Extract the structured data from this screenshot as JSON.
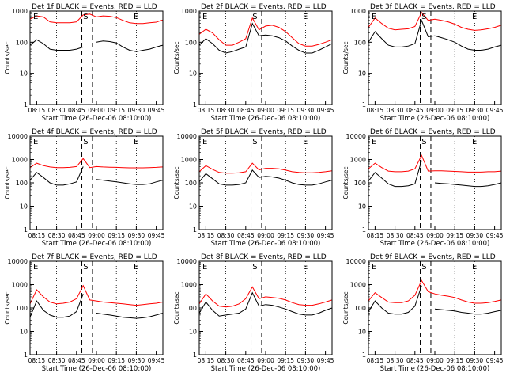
{
  "figure": {
    "ylabel": "Counts/sec",
    "xlabel": "Start Time (26-Dec-06 08:10:00)",
    "y_ticks": [
      "1",
      "10",
      "100",
      "1000",
      "10000"
    ],
    "x_ticks": [
      "08:15",
      "08:30",
      "08:45",
      "09:00",
      "09:15",
      "09:30",
      "09:45"
    ],
    "colors": {
      "events": "#000000",
      "lld": "#ff0000",
      "axes": "#000000"
    }
  },
  "chart_data": [
    {
      "type": "line",
      "title": "Det 1f BLACK = Events, RED = LLD",
      "markers": {
        "pre": "E",
        "saa": "S",
        "post": "E"
      },
      "ylim": [
        1,
        1000
      ],
      "y_scale": "log",
      "x": [
        "08:10",
        "08:15",
        "08:20",
        "08:25",
        "08:30",
        "08:35",
        "08:40",
        "08:45",
        "08:50",
        "08:55",
        "09:00",
        "09:05",
        "09:10",
        "09:15",
        "09:20",
        "09:25",
        "09:30",
        "09:35",
        "09:40",
        "09:45",
        "09:50"
      ],
      "series": [
        {
          "name": "RED = LLD",
          "values": [
            550,
            700,
            650,
            450,
            420,
            420,
            420,
            450,
            750,
            800,
            650,
            700,
            680,
            620,
            500,
            420,
            400,
            400,
            420,
            440,
            520
          ]
        },
        {
          "name": "BLACK = Events",
          "values": [
            80,
            120,
            90,
            60,
            55,
            55,
            55,
            60,
            70,
            null,
            100,
            110,
            105,
            95,
            70,
            55,
            50,
            55,
            60,
            70,
            80
          ]
        }
      ]
    },
    {
      "type": "line",
      "title": "Det 2f BLACK = Events, RED = LLD",
      "markers": {
        "pre": "E",
        "saa": "S",
        "post": "E"
      },
      "ylim": [
        1,
        1000
      ],
      "y_scale": "log",
      "x": [
        "08:10",
        "08:15",
        "08:20",
        "08:25",
        "08:30",
        "08:35",
        "08:40",
        "08:45",
        "08:50",
        "08:55",
        "09:00",
        "09:05",
        "09:10",
        "09:15",
        "09:20",
        "09:25",
        "09:30",
        "09:35",
        "09:40",
        "09:45",
        "09:50"
      ],
      "series": [
        {
          "name": "RED = LLD",
          "values": [
            180,
            260,
            200,
            120,
            80,
            80,
            100,
            130,
            600,
            250,
            330,
            350,
            300,
            220,
            140,
            90,
            75,
            75,
            85,
            100,
            120
          ]
        },
        {
          "name": "BLACK = Events",
          "values": [
            80,
            130,
            90,
            55,
            45,
            50,
            60,
            70,
            400,
            160,
            170,
            160,
            140,
            110,
            75,
            55,
            45,
            45,
            55,
            70,
            90
          ]
        }
      ]
    },
    {
      "type": "line",
      "title": "Det 3f BLACK = Events, RED = LLD",
      "markers": {
        "pre": "E",
        "saa": "S",
        "post": "E"
      },
      "ylim": [
        1,
        1000
      ],
      "y_scale": "log",
      "x": [
        "08:10",
        "08:15",
        "08:20",
        "08:25",
        "08:30",
        "08:35",
        "08:40",
        "08:45",
        "08:50",
        "08:55",
        "09:00",
        "09:05",
        "09:10",
        "09:15",
        "09:20",
        "09:25",
        "09:30",
        "09:35",
        "09:40",
        "09:45",
        "09:50"
      ],
      "series": [
        {
          "name": "RED = LLD",
          "values": [
            300,
            600,
            400,
            280,
            250,
            260,
            270,
            320,
            900,
            500,
            550,
            500,
            450,
            380,
            300,
            260,
            240,
            250,
            270,
            300,
            350
          ]
        },
        {
          "name": "BLACK = Events",
          "values": [
            100,
            220,
            130,
            80,
            70,
            70,
            75,
            90,
            500,
            150,
            160,
            140,
            120,
            100,
            75,
            60,
            55,
            55,
            60,
            70,
            80
          ]
        }
      ]
    },
    {
      "type": "line",
      "title": "Det 4f BLACK = Events, RED = LLD",
      "markers": {
        "pre": "E",
        "saa": "S",
        "post": "E"
      },
      "ylim": [
        1,
        10000
      ],
      "y_scale": "log",
      "x": [
        "08:10",
        "08:15",
        "08:20",
        "08:25",
        "08:30",
        "08:35",
        "08:40",
        "08:45",
        "08:50",
        "08:55",
        "09:00",
        "09:05",
        "09:10",
        "09:15",
        "09:20",
        "09:25",
        "09:30",
        "09:35",
        "09:40",
        "09:45",
        "09:50"
      ],
      "series": [
        {
          "name": "RED = LLD",
          "values": [
            450,
            700,
            550,
            480,
            450,
            450,
            460,
            500,
            1100,
            450,
            500,
            480,
            470,
            460,
            450,
            440,
            440,
            440,
            450,
            460,
            480
          ]
        },
        {
          "name": "BLACK = Events",
          "values": [
            130,
            280,
            170,
            100,
            80,
            80,
            90,
            110,
            500,
            null,
            140,
            130,
            120,
            110,
            100,
            90,
            85,
            85,
            90,
            110,
            130
          ]
        }
      ]
    },
    {
      "type": "line",
      "title": "Det 5f BLACK = Events, RED = LLD",
      "markers": {
        "pre": "E",
        "saa": "S",
        "post": "E"
      },
      "ylim": [
        1,
        10000
      ],
      "y_scale": "log",
      "x": [
        "08:10",
        "08:15",
        "08:20",
        "08:25",
        "08:30",
        "08:35",
        "08:40",
        "08:45",
        "08:50",
        "08:55",
        "09:00",
        "09:05",
        "09:10",
        "09:15",
        "09:20",
        "09:25",
        "09:30",
        "09:35",
        "09:40",
        "09:45",
        "09:50"
      ],
      "series": [
        {
          "name": "RED = LLD",
          "values": [
            300,
            550,
            380,
            280,
            260,
            260,
            270,
            300,
            700,
            360,
            420,
            420,
            400,
            350,
            300,
            280,
            270,
            270,
            280,
            300,
            330
          ]
        },
        {
          "name": "BLACK = Events",
          "values": [
            110,
            250,
            150,
            90,
            80,
            80,
            85,
            100,
            350,
            170,
            190,
            180,
            160,
            130,
            100,
            85,
            80,
            80,
            90,
            110,
            130
          ]
        }
      ]
    },
    {
      "type": "line",
      "title": "Det 6f BLACK = Events, RED = LLD",
      "markers": {
        "pre": "E",
        "saa": "S",
        "post": "E"
      },
      "ylim": [
        1,
        10000
      ],
      "y_scale": "log",
      "x": [
        "08:10",
        "08:15",
        "08:20",
        "08:25",
        "08:30",
        "08:35",
        "08:40",
        "08:45",
        "08:50",
        "08:55",
        "09:00",
        "09:05",
        "09:10",
        "09:15",
        "09:20",
        "09:25",
        "09:30",
        "09:35",
        "09:40",
        "09:45",
        "09:50"
      ],
      "series": [
        {
          "name": "RED = LLD",
          "values": [
            400,
            700,
            450,
            320,
            300,
            300,
            320,
            400,
            1500,
            320,
            330,
            330,
            320,
            310,
            300,
            290,
            290,
            290,
            300,
            300,
            320
          ]
        },
        {
          "name": "BLACK = Events",
          "values": [
            120,
            280,
            160,
            90,
            70,
            70,
            75,
            90,
            900,
            null,
            100,
            95,
            90,
            85,
            80,
            75,
            70,
            70,
            75,
            85,
            100
          ]
        }
      ]
    },
    {
      "type": "line",
      "title": "Det 7f BLACK = Events, RED = LLD",
      "markers": {
        "pre": "E",
        "saa": "S",
        "post": "E"
      },
      "ylim": [
        1,
        10000
      ],
      "y_scale": "log",
      "x": [
        "08:10",
        "08:15",
        "08:20",
        "08:25",
        "08:30",
        "08:35",
        "08:40",
        "08:45",
        "08:50",
        "08:55",
        "09:00",
        "09:05",
        "09:10",
        "09:15",
        "09:20",
        "09:25",
        "09:30",
        "09:35",
        "09:40",
        "09:45",
        "09:50"
      ],
      "series": [
        {
          "name": "RED = LLD",
          "values": [
            150,
            600,
            300,
            180,
            150,
            160,
            180,
            250,
            900,
            220,
            200,
            180,
            170,
            160,
            150,
            140,
            130,
            140,
            150,
            160,
            180
          ]
        },
        {
          "name": "BLACK = Events",
          "values": [
            40,
            200,
            80,
            50,
            40,
            40,
            45,
            70,
            400,
            null,
            60,
            55,
            50,
            45,
            40,
            38,
            36,
            38,
            42,
            50,
            60
          ]
        }
      ]
    },
    {
      "type": "line",
      "title": "Det 8f BLACK = Events, RED = LLD",
      "markers": {
        "pre": "E",
        "saa": "S",
        "post": "E"
      },
      "ylim": [
        1,
        10000
      ],
      "y_scale": "log",
      "x": [
        "08:10",
        "08:15",
        "08:20",
        "08:25",
        "08:30",
        "08:35",
        "08:40",
        "08:45",
        "08:50",
        "08:55",
        "09:00",
        "09:05",
        "09:10",
        "09:15",
        "09:20",
        "09:25",
        "09:30",
        "09:35",
        "09:40",
        "09:45",
        "09:50"
      ],
      "series": [
        {
          "name": "RED = LLD",
          "values": [
            150,
            400,
            200,
            120,
            110,
            120,
            150,
            250,
            800,
            250,
            300,
            280,
            260,
            220,
            170,
            140,
            130,
            130,
            150,
            180,
            220
          ]
        },
        {
          "name": "BLACK = Events",
          "values": [
            60,
            180,
            80,
            45,
            50,
            55,
            60,
            90,
            450,
            120,
            140,
            130,
            110,
            90,
            70,
            55,
            50,
            50,
            60,
            80,
            100
          ]
        }
      ]
    },
    {
      "type": "line",
      "title": "Det 9f BLACK = Events, RED = LLD",
      "markers": {
        "pre": "E",
        "saa": "S",
        "post": "E"
      },
      "ylim": [
        1,
        10000
      ],
      "y_scale": "log",
      "x": [
        "08:10",
        "08:15",
        "08:20",
        "08:25",
        "08:30",
        "08:35",
        "08:40",
        "08:45",
        "08:50",
        "08:55",
        "09:00",
        "09:05",
        "09:10",
        "09:15",
        "09:20",
        "09:25",
        "09:30",
        "09:35",
        "09:40",
        "09:45",
        "09:50"
      ],
      "series": [
        {
          "name": "RED = LLD",
          "values": [
            200,
            450,
            280,
            180,
            170,
            170,
            200,
            350,
            1500,
            500,
            400,
            350,
            320,
            280,
            220,
            180,
            160,
            160,
            170,
            190,
            220
          ]
        },
        {
          "name": "BLACK = Events",
          "values": [
            70,
            200,
            100,
            60,
            55,
            55,
            65,
            120,
            900,
            null,
            90,
            85,
            80,
            75,
            65,
            60,
            55,
            55,
            60,
            70,
            80
          ]
        }
      ]
    }
  ]
}
